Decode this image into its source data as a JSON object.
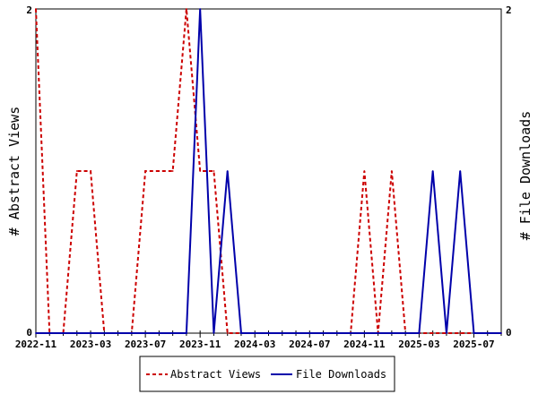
{
  "chart_data": {
    "type": "line",
    "x_tick_labels": [
      "2022-11",
      "2023-03",
      "2023-07",
      "2023-11",
      "2024-03",
      "2024-07",
      "2024-11",
      "2025-03",
      "2025-07"
    ],
    "x_months": [
      "2022-11",
      "2022-12",
      "2023-01",
      "2023-02",
      "2023-03",
      "2023-04",
      "2023-05",
      "2023-06",
      "2023-07",
      "2023-08",
      "2023-09",
      "2023-10",
      "2023-11",
      "2023-12",
      "2024-01",
      "2024-02",
      "2024-03",
      "2024-04",
      "2024-05",
      "2024-06",
      "2024-07",
      "2024-08",
      "2024-09",
      "2024-10",
      "2024-11",
      "2024-12",
      "2025-01",
      "2025-02",
      "2025-03",
      "2025-04",
      "2025-05",
      "2025-06",
      "2025-07",
      "2025-08",
      "2025-09"
    ],
    "ylabel_left": "# Abstract Views",
    "ylabel_right": "# File Downloads",
    "ylim": [
      0,
      2
    ],
    "y_ticks_left": [
      "0",
      "2"
    ],
    "y_ticks_right": [
      "0",
      "2"
    ],
    "grid": false,
    "legend_position": "bottom",
    "series": [
      {
        "name": "Abstract Views",
        "color": "#cc0000",
        "style": "dashed",
        "axis": "left",
        "values": [
          2,
          0,
          0,
          1,
          1,
          0,
          0,
          0,
          1,
          1,
          1,
          2,
          1,
          1,
          0,
          0,
          0,
          0,
          0,
          0,
          0,
          0,
          0,
          0,
          1,
          0,
          1,
          0,
          0,
          0,
          0,
          0,
          0,
          0,
          0
        ]
      },
      {
        "name": "File Downloads",
        "color": "#0000aa",
        "style": "solid",
        "axis": "right",
        "values": [
          0,
          0,
          0,
          0,
          0,
          0,
          0,
          0,
          0,
          0,
          0,
          0,
          2,
          0,
          1,
          0,
          0,
          0,
          0,
          0,
          0,
          0,
          0,
          0,
          0,
          0,
          0,
          0,
          0,
          1,
          0,
          1,
          0,
          0,
          0
        ]
      }
    ]
  }
}
